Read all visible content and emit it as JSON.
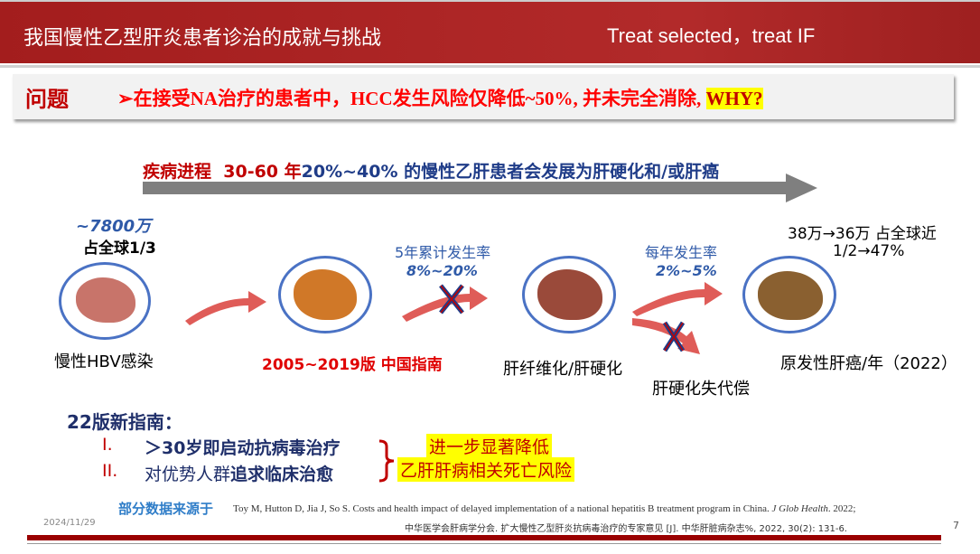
{
  "header": {
    "title": "我国慢性乙型肝炎患者诊治的成就与挑战",
    "subtitle": "Treat selected，treat  IF"
  },
  "question": {
    "label": "问题",
    "arrow": "➢",
    "text": "在接受NA治疗的患者中，HCC发生风险仅降低~50%, 并未完全消除, ",
    "highlight": "WHY?"
  },
  "progression": {
    "label": "疾病进程",
    "years": "30-60 年",
    "text": "20%~40% 的慢性乙肝患者会发展为肝硬化和/或肝癌"
  },
  "stages": {
    "hbv": {
      "count": "~7800万",
      "share": "占全球1/3",
      "label": "慢性HBV感染"
    },
    "guide": {
      "label": "2005~2019版 中国指南"
    },
    "rate1": {
      "title": "5年累计发生率",
      "value": "8%~20%"
    },
    "fibrosis": {
      "label": "肝纤维化/肝硬化"
    },
    "rate2": {
      "title": "每年发生率",
      "value": "2%~5%"
    },
    "decomp": {
      "label": "肝硬化失代偿"
    },
    "hcc": {
      "stat1": "38万→36万 占全球近",
      "stat2": "1/2→47%",
      "label": "原发性肝癌/年（2022）"
    }
  },
  "guideline22": {
    "title": "22版新指南：",
    "items": [
      {
        "num": "I.",
        "text": "＞30岁即启动抗病毒治疗"
      },
      {
        "num": "II.",
        "text_plain": "对优势人群",
        "text_bold": "追求临床治愈"
      }
    ],
    "result1": "进一步显著降低",
    "result2": "乙肝肝病相关死亡风险"
  },
  "footer": {
    "source_label": "部分数据来源于",
    "ref1": "Toy M, Hutton D, Jia J, So S. Costs and health impact of delayed implementation of a national hepatitis B treatment program in China. ",
    "ref1_journal": "J Glob Health",
    "ref1_end": ". 2022;",
    "ref2": "中华医学会肝病学分会. 扩大慢性乙型肝炎抗病毒治疗的专家意见 [J]. 中华肝脏病杂志%, 2022, 30(2): 131-6.",
    "date": "2024/11/29",
    "page": "7"
  }
}
